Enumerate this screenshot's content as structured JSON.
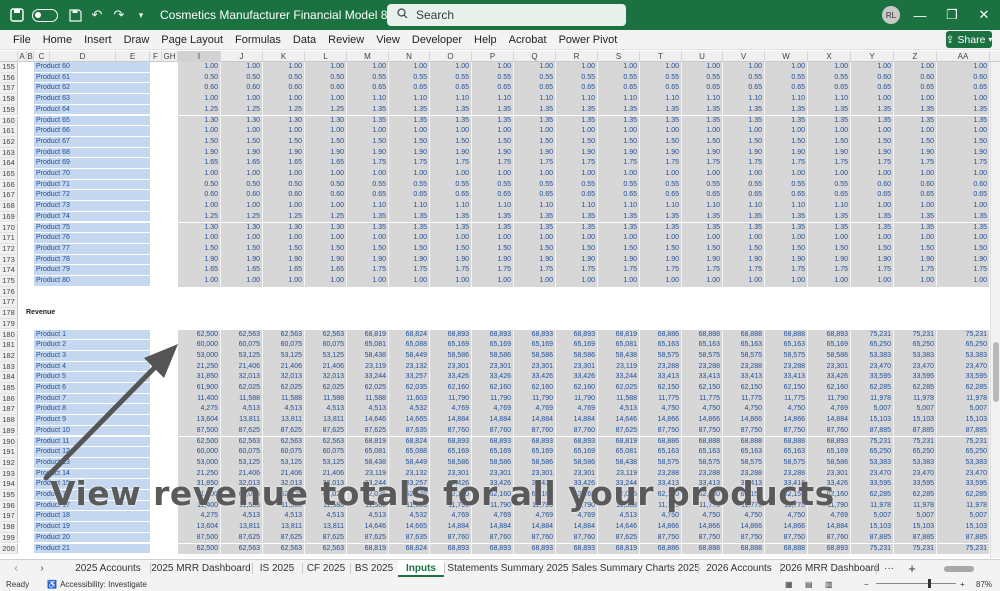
{
  "titlebar": {
    "doc_title": "Cosmetics Manufacturer Financial Model 80 MRR.xlsx  -  Excel",
    "search_placeholder": "Search",
    "avatar_initials": "RL",
    "toggle_label": "",
    "undo_glyph": "↶",
    "redo_glyph": "↷",
    "minimize_glyph": "—",
    "restore_glyph": "❐",
    "close_glyph": "✕"
  },
  "menu": [
    "File",
    "Home",
    "Insert",
    "Draw",
    "Page Layout",
    "Formulas",
    "Data",
    "Review",
    "View",
    "Developer",
    "Help",
    "Acrobat",
    "Power Pivot"
  ],
  "share_label": "Share",
  "ribbon_collapse": "⌃",
  "columns": [
    "A",
    "B",
    "C",
    "D",
    "E",
    "F",
    "GH",
    "I",
    "J",
    "K",
    "L",
    "M",
    "N",
    "O",
    "P",
    "Q",
    "R",
    "S",
    "T",
    "U",
    "V",
    "W",
    "X",
    "Y",
    "Z",
    "AA"
  ],
  "upper_rows": [
    {
      "n": "155",
      "label": "Product 60",
      "v": [
        "1.00",
        "1.00",
        "1.00",
        "1.00",
        "1.00",
        "1.00",
        "1.00",
        "1.00",
        "1.00",
        "1.00",
        "1.00",
        "1.00",
        "1.00",
        "1.00",
        "1.00",
        "1.00",
        "1.00",
        "1.00",
        "1.00"
      ]
    },
    {
      "n": "156",
      "label": "Product 61",
      "v": [
        "0.50",
        "0.50",
        "0.50",
        "0.50",
        "0.55",
        "0.55",
        "0.55",
        "0.55",
        "0.55",
        "0.55",
        "0.55",
        "0.55",
        "0.55",
        "0.55",
        "0.55",
        "0.55",
        "0.60",
        "0.60",
        "0.60"
      ]
    },
    {
      "n": "157",
      "label": "Product 62",
      "v": [
        "0.60",
        "0.60",
        "0.60",
        "0.60",
        "0.65",
        "0.65",
        "0.65",
        "0.65",
        "0.65",
        "0.65",
        "0.65",
        "0.65",
        "0.65",
        "0.65",
        "0.65",
        "0.65",
        "0.65",
        "0.65",
        "0.65"
      ]
    },
    {
      "n": "158",
      "label": "Product 63",
      "v": [
        "1.00",
        "1.00",
        "1.00",
        "1.00",
        "1.10",
        "1.10",
        "1.10",
        "1.10",
        "1.10",
        "1.10",
        "1.10",
        "1.10",
        "1.10",
        "1.10",
        "1.10",
        "1.10",
        "1.00",
        "1.00",
        "1.00"
      ]
    },
    {
      "n": "159",
      "label": "Product 64",
      "v": [
        "1.25",
        "1.25",
        "1.25",
        "1.25",
        "1.35",
        "1.35",
        "1.35",
        "1.35",
        "1.35",
        "1.35",
        "1.35",
        "1.35",
        "1.35",
        "1.35",
        "1.35",
        "1.35",
        "1.35",
        "1.35",
        "1.35"
      ]
    },
    {
      "n": "160",
      "label": "Product 65",
      "v": [
        "1.30",
        "1.30",
        "1.30",
        "1.30",
        "1.35",
        "1.35",
        "1.35",
        "1.35",
        "1.35",
        "1.35",
        "1.35",
        "1.35",
        "1.35",
        "1.35",
        "1.35",
        "1.35",
        "1.35",
        "1.35",
        "1.35"
      ]
    },
    {
      "n": "161",
      "label": "Product 66",
      "v": [
        "1.00",
        "1.00",
        "1.00",
        "1.00",
        "1.00",
        "1.00",
        "1.00",
        "1.00",
        "1.00",
        "1.00",
        "1.00",
        "1.00",
        "1.00",
        "1.00",
        "1.00",
        "1.00",
        "1.00",
        "1.00",
        "1.00"
      ]
    },
    {
      "n": "162",
      "label": "Product 67",
      "v": [
        "1.50",
        "1.50",
        "1.50",
        "1.50",
        "1.50",
        "1.50",
        "1.50",
        "1.50",
        "1.50",
        "1.50",
        "1.50",
        "1.50",
        "1.50",
        "1.50",
        "1.50",
        "1.50",
        "1.50",
        "1.50",
        "1.50"
      ]
    },
    {
      "n": "163",
      "label": "Product 68",
      "v": [
        "1.90",
        "1.90",
        "1.90",
        "1.90",
        "1.90",
        "1.90",
        "1.90",
        "1.90",
        "1.90",
        "1.90",
        "1.90",
        "1.90",
        "1.90",
        "1.90",
        "1.90",
        "1.90",
        "1.90",
        "1.90",
        "1.90"
      ]
    },
    {
      "n": "164",
      "label": "Product 69",
      "v": [
        "1.65",
        "1.65",
        "1.65",
        "1.65",
        "1.75",
        "1.75",
        "1.75",
        "1.75",
        "1.75",
        "1.75",
        "1.75",
        "1.75",
        "1.75",
        "1.75",
        "1.75",
        "1.75",
        "1.75",
        "1.75",
        "1.75"
      ]
    },
    {
      "n": "165",
      "label": "Product 70",
      "v": [
        "1.00",
        "1.00",
        "1.00",
        "1.00",
        "1.00",
        "1.00",
        "1.00",
        "1.00",
        "1.00",
        "1.00",
        "1.00",
        "1.00",
        "1.00",
        "1.00",
        "1.00",
        "1.00",
        "1.00",
        "1.00",
        "1.00"
      ]
    },
    {
      "n": "166",
      "label": "Product 71",
      "v": [
        "0.50",
        "0.50",
        "0.50",
        "0.50",
        "0.55",
        "0.55",
        "0.55",
        "0.55",
        "0.55",
        "0.55",
        "0.55",
        "0.55",
        "0.55",
        "0.55",
        "0.55",
        "0.55",
        "0.60",
        "0.60",
        "0.60"
      ]
    },
    {
      "n": "167",
      "label": "Product 72",
      "v": [
        "0.60",
        "0.60",
        "0.60",
        "0.60",
        "0.65",
        "0.65",
        "0.65",
        "0.65",
        "0.65",
        "0.65",
        "0.65",
        "0.65",
        "0.65",
        "0.65",
        "0.65",
        "0.65",
        "0.65",
        "0.65",
        "0.65"
      ]
    },
    {
      "n": "168",
      "label": "Product 73",
      "v": [
        "1.00",
        "1.00",
        "1.00",
        "1.00",
        "1.10",
        "1.10",
        "1.10",
        "1.10",
        "1.10",
        "1.10",
        "1.10",
        "1.10",
        "1.10",
        "1.10",
        "1.10",
        "1.10",
        "1.00",
        "1.00",
        "1.00"
      ]
    },
    {
      "n": "169",
      "label": "Product 74",
      "v": [
        "1.25",
        "1.25",
        "1.25",
        "1.25",
        "1.35",
        "1.35",
        "1.35",
        "1.35",
        "1.35",
        "1.35",
        "1.35",
        "1.35",
        "1.35",
        "1.35",
        "1.35",
        "1.35",
        "1.35",
        "1.35",
        "1.35"
      ]
    },
    {
      "n": "170",
      "label": "Product 75",
      "v": [
        "1.30",
        "1.30",
        "1.30",
        "1.30",
        "1.35",
        "1.35",
        "1.35",
        "1.35",
        "1.35",
        "1.35",
        "1.35",
        "1.35",
        "1.35",
        "1.35",
        "1.35",
        "1.35",
        "1.35",
        "1.35",
        "1.35"
      ]
    },
    {
      "n": "171",
      "label": "Product 76",
      "v": [
        "1.00",
        "1.00",
        "1.00",
        "1.00",
        "1.00",
        "1.00",
        "1.00",
        "1.00",
        "1.00",
        "1.00",
        "1.00",
        "1.00",
        "1.00",
        "1.00",
        "1.00",
        "1.00",
        "1.00",
        "1.00",
        "1.00"
      ]
    },
    {
      "n": "172",
      "label": "Product 77",
      "v": [
        "1.50",
        "1.50",
        "1.50",
        "1.50",
        "1.50",
        "1.50",
        "1.50",
        "1.50",
        "1.50",
        "1.50",
        "1.50",
        "1.50",
        "1.50",
        "1.50",
        "1.50",
        "1.50",
        "1.50",
        "1.50",
        "1.50"
      ]
    },
    {
      "n": "173",
      "label": "Product 78",
      "v": [
        "1.90",
        "1.90",
        "1.90",
        "1.90",
        "1.90",
        "1.90",
        "1.90",
        "1.90",
        "1.90",
        "1.90",
        "1.90",
        "1.90",
        "1.90",
        "1.90",
        "1.90",
        "1.90",
        "1.90",
        "1.90",
        "1.90"
      ]
    },
    {
      "n": "174",
      "label": "Product 79",
      "v": [
        "1.65",
        "1.65",
        "1.65",
        "1.65",
        "1.75",
        "1.75",
        "1.75",
        "1.75",
        "1.75",
        "1.75",
        "1.75",
        "1.75",
        "1.75",
        "1.75",
        "1.75",
        "1.75",
        "1.75",
        "1.75",
        "1.75"
      ]
    },
    {
      "n": "175",
      "label": "Product 80",
      "v": [
        "1.00",
        "1.00",
        "1.00",
        "1.00",
        "1.00",
        "1.00",
        "1.00",
        "1.00",
        "1.00",
        "1.00",
        "1.00",
        "1.00",
        "1.00",
        "1.00",
        "1.00",
        "1.00",
        "1.00",
        "1.00",
        "1.00"
      ]
    }
  ],
  "blank_rows": [
    "176",
    "177"
  ],
  "section_row": {
    "n": "178",
    "label": "Revenue"
  },
  "blank_row_179": "179",
  "revenue_rows": [
    {
      "n": "180",
      "label": "Product 1",
      "v": [
        "62,500",
        "62,563",
        "62,563",
        "62,563",
        "68,819",
        "68,824",
        "68,893",
        "68,893",
        "68,893",
        "68,893",
        "68,819",
        "68,886",
        "68,888",
        "68,888",
        "68,888",
        "68,893",
        "75,231",
        "75,231",
        "75,231"
      ]
    },
    {
      "n": "181",
      "label": "Product 2",
      "v": [
        "60,000",
        "60,075",
        "60,075",
        "60,075",
        "65,081",
        "65,088",
        "65,169",
        "65,169",
        "65,169",
        "65,169",
        "65,081",
        "65,163",
        "65,163",
        "65,163",
        "65,163",
        "65,169",
        "65,250",
        "65,250",
        "65,250"
      ]
    },
    {
      "n": "182",
      "label": "Product 3",
      "v": [
        "53,000",
        "53,125",
        "53,125",
        "53,125",
        "58,438",
        "58,449",
        "58,586",
        "58,586",
        "58,586",
        "58,586",
        "58,438",
        "58,575",
        "58,575",
        "58,575",
        "58,575",
        "58,586",
        "53,383",
        "53,383",
        "53,383"
      ]
    },
    {
      "n": "183",
      "label": "Product 4",
      "v": [
        "21,250",
        "21,406",
        "21,406",
        "21,406",
        "23,119",
        "23,132",
        "23,301",
        "23,301",
        "23,301",
        "23,301",
        "23,119",
        "23,288",
        "23,288",
        "23,288",
        "23,288",
        "23,301",
        "23,470",
        "23,470",
        "23,470"
      ]
    },
    {
      "n": "184",
      "label": "Product 5",
      "v": [
        "31,850",
        "32,013",
        "32,013",
        "32,013",
        "33,244",
        "33,257",
        "33,426",
        "33,426",
        "33,426",
        "33,426",
        "33,244",
        "33,413",
        "33,413",
        "33,413",
        "33,413",
        "33,426",
        "33,595",
        "33,595",
        "33,595"
      ]
    },
    {
      "n": "185",
      "label": "Product 6",
      "v": [
        "61,900",
        "62,025",
        "62,025",
        "62,025",
        "62,025",
        "62,035",
        "62,160",
        "62,160",
        "62,160",
        "62,160",
        "62,025",
        "62,150",
        "62,150",
        "62,150",
        "62,150",
        "62,160",
        "62,285",
        "62,285",
        "62,285"
      ]
    },
    {
      "n": "186",
      "label": "Product 7",
      "v": [
        "11,400",
        "11,588",
        "11,588",
        "11,588",
        "11,588",
        "11,603",
        "11,790",
        "11,790",
        "11,790",
        "11,790",
        "11,588",
        "11,775",
        "11,775",
        "11,775",
        "11,775",
        "11,790",
        "11,978",
        "11,978",
        "11,978"
      ]
    },
    {
      "n": "187",
      "label": "Product 8",
      "v": [
        "4,275",
        "4,513",
        "4,513",
        "4,513",
        "4,513",
        "4,532",
        "4,769",
        "4,769",
        "4,769",
        "4,769",
        "4,513",
        "4,750",
        "4,750",
        "4,750",
        "4,750",
        "4,769",
        "5,007",
        "5,007",
        "5,007"
      ]
    },
    {
      "n": "188",
      "label": "Product 9",
      "v": [
        "13,604",
        "13,811",
        "13,811",
        "13,811",
        "14,646",
        "14,665",
        "14,884",
        "14,884",
        "14,884",
        "14,884",
        "14,646",
        "14,866",
        "14,866",
        "14,866",
        "14,866",
        "14,884",
        "15,103",
        "15,103",
        "15,103"
      ]
    },
    {
      "n": "189",
      "label": "Product 10",
      "v": [
        "87,500",
        "87,625",
        "87,625",
        "87,625",
        "87,625",
        "87,635",
        "87,760",
        "87,760",
        "87,760",
        "87,760",
        "87,625",
        "87,750",
        "87,750",
        "87,750",
        "87,750",
        "87,760",
        "87,885",
        "87,885",
        "87,885"
      ]
    },
    {
      "n": "190",
      "label": "Product 11",
      "v": [
        "62,500",
        "62,563",
        "62,563",
        "62,563",
        "68,819",
        "68,824",
        "68,893",
        "68,893",
        "68,893",
        "68,893",
        "68,819",
        "68,886",
        "68,888",
        "68,888",
        "68,888",
        "68,893",
        "75,231",
        "75,231",
        "75,231"
      ]
    },
    {
      "n": "191",
      "label": "Product 12",
      "v": [
        "60,000",
        "60,075",
        "60,075",
        "60,075",
        "65,081",
        "65,088",
        "65,169",
        "65,169",
        "65,169",
        "65,169",
        "65,081",
        "65,163",
        "65,163",
        "65,163",
        "65,163",
        "65,169",
        "65,250",
        "65,250",
        "65,250"
      ]
    },
    {
      "n": "192",
      "label": "Product 13",
      "v": [
        "53,000",
        "53,125",
        "53,125",
        "53,125",
        "58,438",
        "58,449",
        "58,586",
        "58,586",
        "58,586",
        "58,586",
        "58,438",
        "58,575",
        "58,575",
        "58,575",
        "58,575",
        "58,586",
        "53,383",
        "53,383",
        "53,383"
      ]
    },
    {
      "n": "193",
      "label": "Product 14",
      "v": [
        "21,250",
        "21,406",
        "21,406",
        "21,406",
        "23,119",
        "23,132",
        "23,301",
        "23,301",
        "23,301",
        "23,301",
        "23,119",
        "23,288",
        "23,288",
        "23,288",
        "23,288",
        "23,301",
        "23,470",
        "23,470",
        "23,470"
      ]
    },
    {
      "n": "194",
      "label": "Product 15",
      "v": [
        "31,850",
        "32,013",
        "32,013",
        "32,013",
        "33,244",
        "33,257",
        "33,426",
        "33,426",
        "33,426",
        "33,426",
        "33,244",
        "33,413",
        "33,413",
        "33,413",
        "33,413",
        "33,426",
        "33,595",
        "33,595",
        "33,595"
      ]
    },
    {
      "n": "195",
      "label": "Product 16",
      "v": [
        "61,900",
        "62,025",
        "62,025",
        "62,025",
        "62,025",
        "62,035",
        "62,160",
        "62,160",
        "62,160",
        "62,160",
        "62,025",
        "62,150",
        "62,150",
        "62,150",
        "62,150",
        "62,160",
        "62,285",
        "62,285",
        "62,285"
      ]
    },
    {
      "n": "196",
      "label": "Product 17",
      "v": [
        "11,400",
        "11,588",
        "11,588",
        "11,588",
        "11,588",
        "11,603",
        "11,790",
        "11,790",
        "11,790",
        "11,790",
        "11,588",
        "11,775",
        "11,775",
        "11,775",
        "11,775",
        "11,790",
        "11,978",
        "11,978",
        "11,978"
      ]
    },
    {
      "n": "197",
      "label": "Product 18",
      "v": [
        "4,275",
        "4,513",
        "4,513",
        "4,513",
        "4,513",
        "4,532",
        "4,769",
        "4,769",
        "4,769",
        "4,769",
        "4,513",
        "4,750",
        "4,750",
        "4,750",
        "4,750",
        "4,769",
        "5,007",
        "5,007",
        "5,007"
      ]
    },
    {
      "n": "198",
      "label": "Product 19",
      "v": [
        "13,604",
        "13,811",
        "13,811",
        "13,811",
        "14,646",
        "14,665",
        "14,884",
        "14,884",
        "14,884",
        "14,884",
        "14,646",
        "14,866",
        "14,866",
        "14,866",
        "14,866",
        "14,884",
        "15,103",
        "15,103",
        "15,103"
      ]
    },
    {
      "n": "199",
      "label": "Product 20",
      "v": [
        "87,500",
        "87,625",
        "87,625",
        "87,625",
        "87,625",
        "87,635",
        "87,760",
        "87,760",
        "87,760",
        "87,760",
        "87,625",
        "87,750",
        "87,750",
        "87,750",
        "87,750",
        "87,760",
        "87,885",
        "87,885",
        "87,885"
      ]
    },
    {
      "n": "200",
      "label": "Product 21",
      "v": [
        "62,500",
        "62,563",
        "62,563",
        "62,563",
        "68,819",
        "68,824",
        "68,893",
        "68,893",
        "68,893",
        "68,893",
        "68,819",
        "68,886",
        "68,888",
        "68,888",
        "68,888",
        "68,893",
        "75,231",
        "75,231",
        "75,231"
      ]
    }
  ],
  "overlay_caption": "View revenue totals for all your products",
  "sheet_tabs": [
    "2025 Accounts",
    "2025 MRR Dashboard",
    "IS 2025",
    "CF 2025",
    "BS 2025",
    "Inputs",
    "Statements Summary 2025",
    "Sales Summary Charts 2025",
    "2026 Accounts",
    "2026 MRR Dashboard"
  ],
  "active_tab": "Inputs",
  "tab_nav": {
    "prev": "‹",
    "next": "›",
    "more": "···",
    "add": "+"
  },
  "status": {
    "ready": "Ready",
    "accessibility": "Accessibility: Investigate",
    "zoom": "87%",
    "zoom_minus": "−",
    "zoom_plus": "+"
  },
  "colors": {
    "accent": "#1b7240",
    "label_blue": "#c6d8ef",
    "cell_gray": "#d7d7d7",
    "text_blue": "#1f4e9a"
  }
}
